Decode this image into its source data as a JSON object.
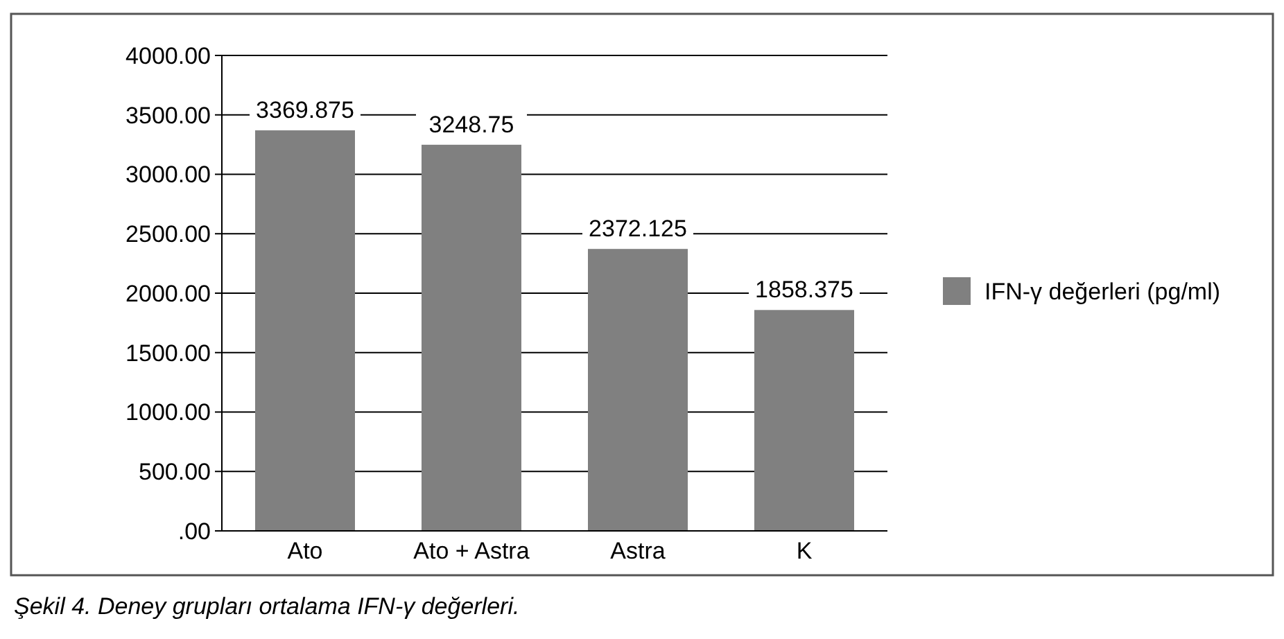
{
  "chart_data": {
    "type": "bar",
    "categories": [
      "Ato",
      "Ato + Astra",
      "Astra",
      "K"
    ],
    "series": [
      {
        "name": "IFN-γ değerleri (pg/ml)",
        "color": "#808080",
        "values": [
          3369.875,
          3248.75,
          2372.125,
          1858.375
        ]
      }
    ],
    "ylim": [
      0,
      4000
    ],
    "yticks": [
      {
        "value": 0,
        "label": ".00"
      },
      {
        "value": 500,
        "label": "500.00"
      },
      {
        "value": 1000,
        "label": "1000.00"
      },
      {
        "value": 1500,
        "label": "1500.00"
      },
      {
        "value": 2000,
        "label": "2000.00"
      },
      {
        "value": 2500,
        "label": "2500.00"
      },
      {
        "value": 3000,
        "label": "3000.00"
      },
      {
        "value": 3500,
        "label": "3500.00"
      },
      {
        "value": 4000,
        "label": "4000.00"
      }
    ],
    "grid": "y",
    "legend": "right",
    "data_labels": true,
    "annotations": [
      "Şekil 4. Deney grupları ortalama IFN-γ değerleri."
    ]
  }
}
